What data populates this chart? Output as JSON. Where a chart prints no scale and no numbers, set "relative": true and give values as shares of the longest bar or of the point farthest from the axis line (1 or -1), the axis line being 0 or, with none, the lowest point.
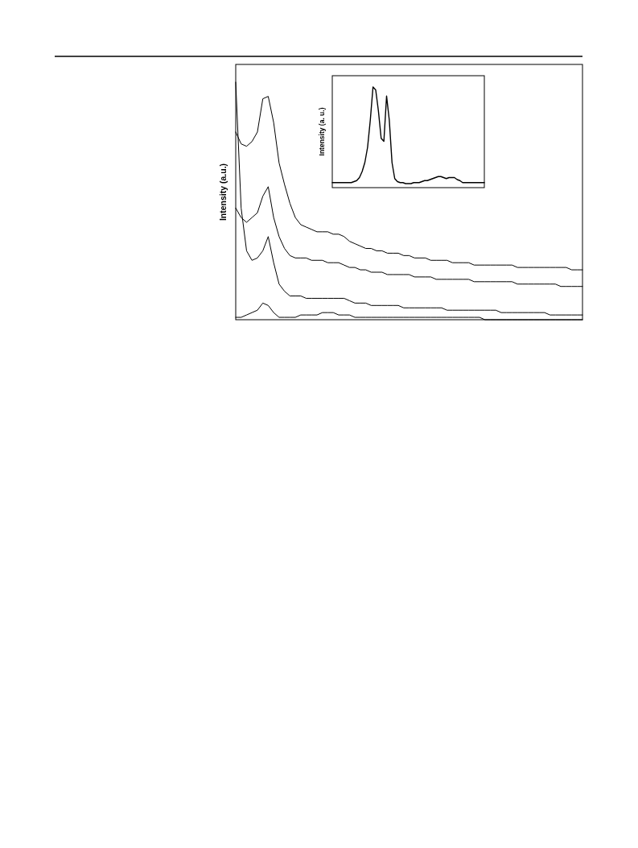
{
  "chart_data": [
    {
      "type": "line",
      "relative": true,
      "ylabel": "Intensity (a.u.)",
      "categories": [
        null,
        null,
        null,
        null,
        null,
        null,
        null,
        null,
        null,
        null,
        null,
        null,
        null,
        null,
        null,
        null,
        null,
        null,
        null,
        null,
        null,
        null,
        null,
        null,
        null,
        null,
        null,
        null,
        null,
        null,
        null,
        null,
        null,
        null,
        null,
        null,
        null,
        null,
        null,
        null,
        null,
        null,
        null,
        null,
        null,
        null,
        null,
        null,
        null,
        null,
        null,
        null,
        null,
        null,
        null,
        null,
        null,
        null,
        null,
        null,
        null,
        null,
        null,
        null,
        null
      ],
      "series": [
        {
          "color": "#000000",
          "values": [
            0.79,
            0.74,
            0.73,
            0.75,
            0.79,
            0.93,
            0.94,
            0.83,
            0.66,
            0.57,
            0.49,
            0.43,
            0.4,
            0.39,
            0.38,
            0.37,
            0.37,
            0.37,
            0.36,
            0.36,
            0.35,
            0.33,
            0.32,
            0.31,
            0.3,
            0.3,
            0.29,
            0.29,
            0.28,
            0.28,
            0.28,
            0.27,
            0.27,
            0.26,
            0.26,
            0.26,
            0.25,
            0.25,
            0.25,
            0.25,
            0.24,
            0.24,
            0.24,
            0.24,
            0.23,
            0.23,
            0.23,
            0.23,
            0.23,
            0.23,
            0.23,
            0.23,
            0.22,
            0.22,
            0.22,
            0.22,
            0.22,
            0.22,
            0.22,
            0.22,
            0.22,
            0.22,
            0.21,
            0.21,
            0.21
          ]
        },
        {
          "color": "#000000",
          "values": [
            0.47,
            0.43,
            0.41,
            0.43,
            0.45,
            0.52,
            0.56,
            0.43,
            0.35,
            0.3,
            0.27,
            0.26,
            0.26,
            0.26,
            0.25,
            0.25,
            0.25,
            0.24,
            0.24,
            0.24,
            0.23,
            0.22,
            0.22,
            0.21,
            0.21,
            0.2,
            0.2,
            0.2,
            0.19,
            0.19,
            0.19,
            0.19,
            0.19,
            0.18,
            0.18,
            0.18,
            0.18,
            0.17,
            0.17,
            0.17,
            0.17,
            0.17,
            0.17,
            0.17,
            0.16,
            0.16,
            0.16,
            0.16,
            0.16,
            0.16,
            0.16,
            0.16,
            0.15,
            0.15,
            0.15,
            0.15,
            0.15,
            0.15,
            0.15,
            0.15,
            0.14,
            0.14,
            0.14,
            0.14,
            0.14
          ]
        },
        {
          "color": "#000000",
          "values": [
            1.0,
            0.47,
            0.29,
            0.25,
            0.26,
            0.29,
            0.35,
            0.24,
            0.15,
            0.12,
            0.1,
            0.1,
            0.1,
            0.09,
            0.09,
            0.09,
            0.09,
            0.09,
            0.09,
            0.09,
            0.09,
            0.08,
            0.07,
            0.07,
            0.07,
            0.06,
            0.06,
            0.06,
            0.06,
            0.06,
            0.06,
            0.05,
            0.05,
            0.05,
            0.05,
            0.05,
            0.05,
            0.05,
            0.05,
            0.04,
            0.04,
            0.04,
            0.04,
            0.04,
            0.04,
            0.04,
            0.04,
            0.04,
            0.04,
            0.03,
            0.03,
            0.03,
            0.03,
            0.03,
            0.03,
            0.03,
            0.03,
            0.03,
            0.02,
            0.02,
            0.02,
            0.02,
            0.02,
            0.02,
            0.02
          ]
        },
        {
          "color": "#000000",
          "values": [
            0.01,
            0.01,
            0.02,
            0.03,
            0.04,
            0.07,
            0.06,
            0.03,
            0.01,
            0.01,
            0.01,
            0.01,
            0.02,
            0.02,
            0.02,
            0.02,
            0.03,
            0.03,
            0.03,
            0.02,
            0.02,
            0.02,
            0.01,
            0.01,
            0.01,
            0.01,
            0.01,
            0.01,
            0.01,
            0.01,
            0.01,
            0.01,
            0.01,
            0.01,
            0.01,
            0.01,
            0.01,
            0.01,
            0.01,
            0.01,
            0.01,
            0.01,
            0.01,
            0.01,
            0.01,
            0.01,
            0.0,
            0.0,
            0.0,
            0.0,
            0.0,
            0.0,
            0.0,
            0.0,
            0.0,
            0.0,
            0.0,
            0.0,
            0.0,
            0.0,
            0.0,
            0.0,
            0.0,
            0.0,
            0.0
          ]
        }
      ]
    },
    {
      "type": "line",
      "relative": true,
      "ylabel": "Intensity (a. u.)",
      "categories": [
        null,
        null,
        null,
        null,
        null,
        null,
        null,
        null,
        null,
        null,
        null,
        null,
        null,
        null,
        null,
        null,
        null,
        null,
        null,
        null,
        null,
        null,
        null,
        null,
        null,
        null,
        null,
        null,
        null,
        null,
        null,
        null,
        null,
        null,
        null,
        null,
        null,
        null,
        null,
        null,
        null,
        null,
        null,
        null,
        null,
        null,
        null,
        null,
        null,
        null,
        null,
        null,
        null,
        null,
        null,
        null,
        null
      ],
      "series": [
        {
          "color": "#000000",
          "values": [
            0.05,
            0.05,
            0.05,
            0.05,
            0.05,
            0.05,
            0.05,
            0.05,
            0.06,
            0.07,
            0.1,
            0.16,
            0.25,
            0.4,
            0.67,
            1.0,
            0.97,
            0.76,
            0.49,
            0.46,
            0.91,
            0.67,
            0.25,
            0.09,
            0.06,
            0.05,
            0.05,
            0.04,
            0.04,
            0.04,
            0.05,
            0.05,
            0.05,
            0.06,
            0.07,
            0.07,
            0.08,
            0.09,
            0.1,
            0.11,
            0.11,
            0.1,
            0.09,
            0.1,
            0.1,
            0.1,
            0.08,
            0.07,
            0.05,
            0.05,
            0.05,
            0.05,
            0.05,
            0.05,
            0.05,
            0.05,
            0.05
          ]
        }
      ]
    }
  ]
}
